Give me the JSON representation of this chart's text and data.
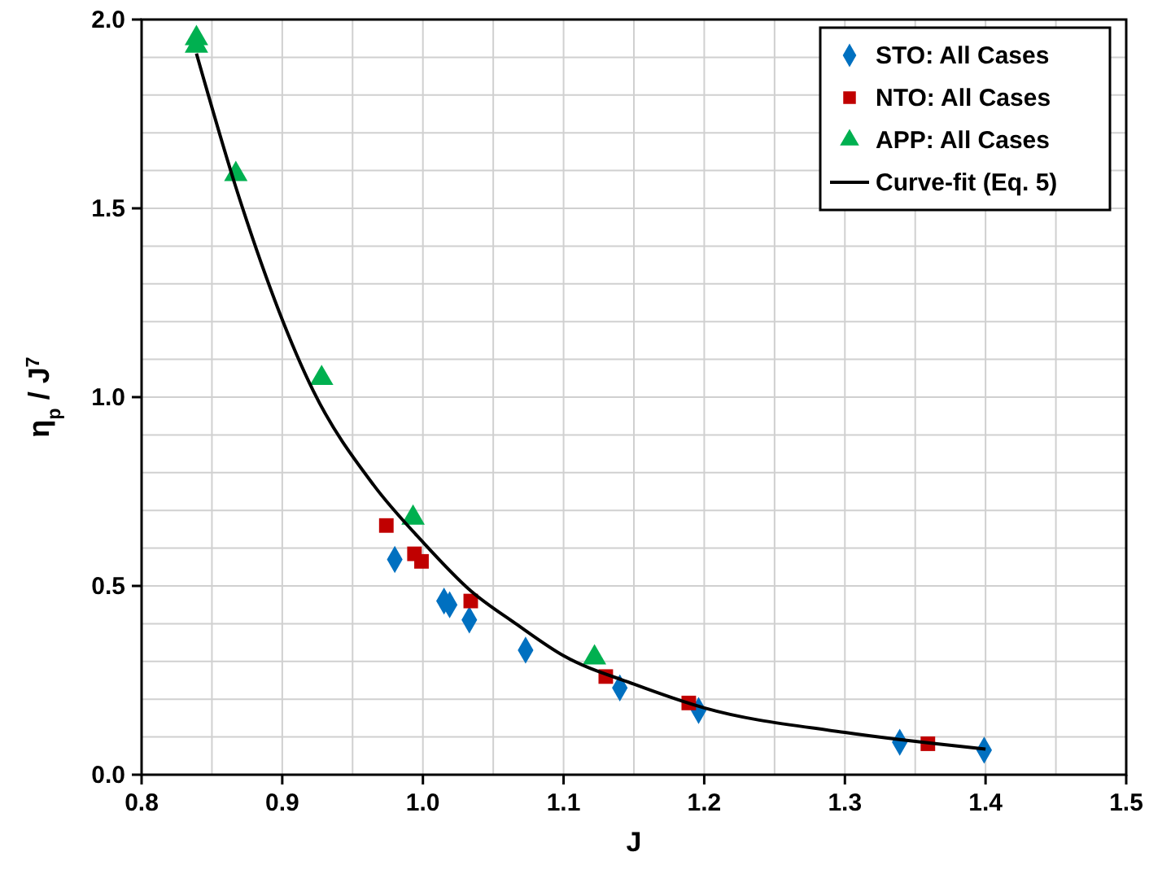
{
  "chart_data": {
    "type": "scatter",
    "xlabel": "J",
    "ylabel": "η$_{p}$ / J$^{7}$",
    "xlim": [
      0.8,
      1.5
    ],
    "ylim": [
      0,
      2
    ],
    "xticks": [
      0.8,
      {
        "value": 0.85,
        "label": null
      },
      0.9,
      {
        "value": 0.95,
        "label": null
      },
      {
        "value": 1.0,
        "label": "1.0"
      },
      {
        "value": 1.05,
        "label": null
      },
      1.1,
      {
        "value": 1.15,
        "label": null
      },
      1.2,
      {
        "value": 1.25,
        "label": null
      },
      1.3,
      {
        "value": 1.35,
        "label": null
      },
      1.4,
      {
        "value": 1.45,
        "label": null
      },
      1.5
    ],
    "yticks": [
      {
        "value": 0,
        "label": "0.0"
      },
      {
        "value": 0.1,
        "label": null
      },
      {
        "value": 0.2,
        "label": null
      },
      {
        "value": 0.3,
        "label": null
      },
      {
        "value": 0.4,
        "label": null
      },
      0.5,
      {
        "value": 0.6,
        "label": null
      },
      {
        "value": 0.7,
        "label": null
      },
      {
        "value": 0.8,
        "label": null
      },
      {
        "value": 0.9,
        "label": null
      },
      {
        "value": 1,
        "label": "1.0"
      },
      {
        "value": 1.1,
        "label": null
      },
      {
        "value": 1.2,
        "label": null
      },
      {
        "value": 1.3,
        "label": null
      },
      {
        "value": 1.4,
        "label": null
      },
      1.5,
      {
        "value": 1.6,
        "label": null
      },
      {
        "value": 1.7,
        "label": null
      },
      {
        "value": 1.8,
        "label": null
      },
      {
        "value": 1.9,
        "label": null
      },
      {
        "value": 2,
        "label": "2.0"
      }
    ],
    "grid": true,
    "legend": "top right",
    "series": [
      {
        "name": "STO: All Cases",
        "color": "#0070c0",
        "marker": "diamond",
        "x": [
          0.98,
          1.015,
          1.019,
          1.033,
          1.073,
          1.14,
          1.196,
          1.339,
          1.399
        ],
        "values": [
          0.57,
          0.46,
          0.45,
          0.41,
          0.33,
          0.23,
          0.17,
          0.086,
          0.065
        ]
      },
      {
        "name": "NTO: All Cases",
        "color": "#c00000",
        "marker": "square",
        "x": [
          0.974,
          0.994,
          0.999,
          1.034,
          1.13,
          1.189,
          1.359
        ],
        "values": [
          0.66,
          0.585,
          0.565,
          0.46,
          0.26,
          0.19,
          0.082
        ]
      },
      {
        "name": "APP: All Cases",
        "color": "#00b050",
        "marker": "triangle",
        "x": [
          0.839,
          0.839,
          0.867,
          0.928,
          0.993,
          1.122
        ],
        "values": [
          1.95,
          1.93,
          1.59,
          1.05,
          0.68,
          0.31
        ]
      },
      {
        "name": "Curve-fit (Eq. 5)",
        "type": "line",
        "color": "#000000",
        "marker": "none",
        "line_style": "solid",
        "x": [
          0.839,
          0.867,
          0.922,
          0.965,
          1.0,
          1.034,
          1.066,
          1.1,
          1.15,
          1.2,
          1.3,
          1.4
        ],
        "values": [
          1.91,
          1.556,
          1.017,
          0.767,
          0.616,
          0.487,
          0.4,
          0.315,
          0.24,
          0.177,
          0.112,
          0.068
        ]
      }
    ]
  }
}
